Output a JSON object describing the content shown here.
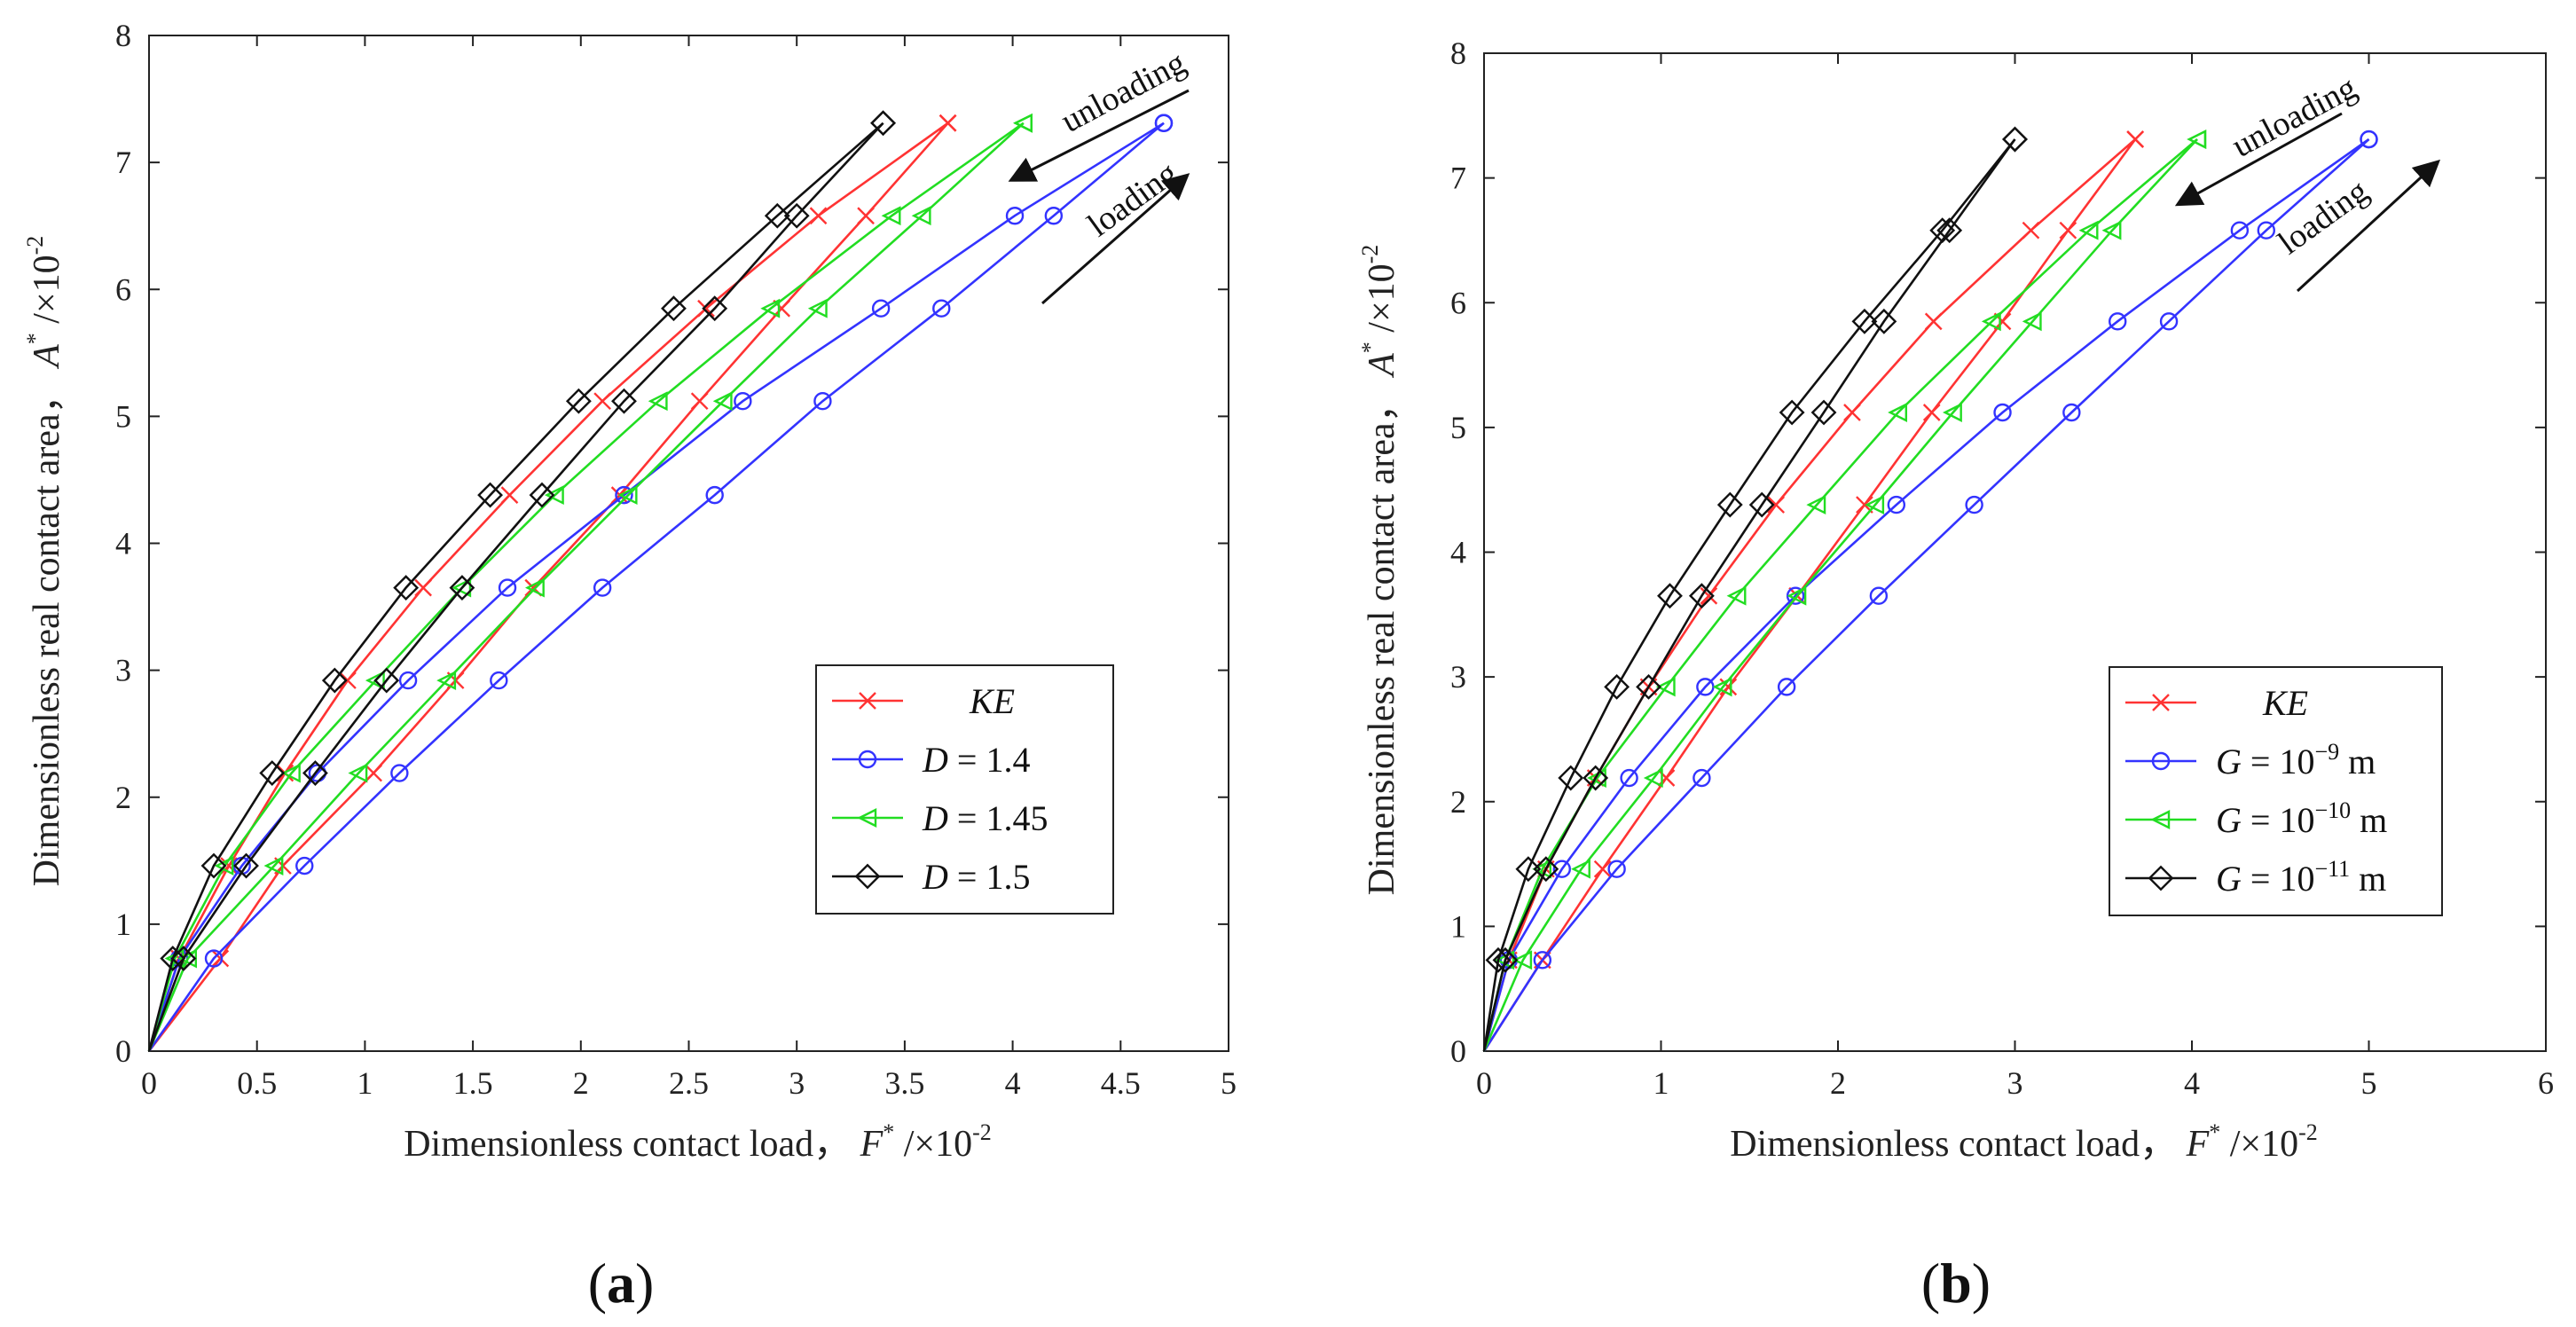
{
  "chart_data": [
    {
      "type": "line",
      "panel_label": "(a)",
      "caption_open": "(",
      "caption_letter": "a",
      "caption_close": ")",
      "xlabel": "Dimensionless contact load，",
      "xlabel_var": "F",
      "xlabel_sup": "*",
      "xlabel_tail": " /×10",
      "xlabel_exp": "-2",
      "ylabel": "Dimensionless real contact area，",
      "ylabel_var": "A",
      "ylabel_sup": "*",
      "ylabel_tail": " /×10",
      "ylabel_exp": "-2",
      "xlim": [
        0,
        5
      ],
      "ylim": [
        0,
        8
      ],
      "xticks": [
        0,
        0.5,
        1,
        1.5,
        2,
        2.5,
        3,
        3.5,
        4,
        4.5,
        5
      ],
      "xtick_labels": [
        "0",
        "0.5",
        "1",
        "1.5",
        "2",
        "2.5",
        "3",
        "3.5",
        "4",
        "4.5",
        "5"
      ],
      "yticks": [
        0,
        1,
        2,
        3,
        4,
        5,
        6,
        7,
        8
      ],
      "ytick_labels": [
        "0",
        "1",
        "2",
        "3",
        "4",
        "5",
        "6",
        "7",
        "8"
      ],
      "annotations": {
        "unloading": "unloading",
        "loading": "loading"
      },
      "series": [
        {
          "name": "KE",
          "label_main": "KE",
          "label_exp": "",
          "label_unit": "",
          "color": "#ff3333",
          "marker": "x",
          "loading": [
            [
              0,
              0
            ],
            [
              0.33,
              0.73
            ],
            [
              0.62,
              1.46
            ],
            [
              1.04,
              2.19
            ],
            [
              1.42,
              2.92
            ],
            [
              1.78,
              3.65
            ],
            [
              2.18,
              4.38
            ],
            [
              2.55,
              5.12
            ],
            [
              2.93,
              5.85
            ],
            [
              3.32,
              6.58
            ],
            [
              3.7,
              7.31
            ]
          ],
          "unloading": [
            [
              3.7,
              7.31
            ],
            [
              3.1,
              6.58
            ],
            [
              2.58,
              5.85
            ],
            [
              2.1,
              5.12
            ],
            [
              1.67,
              4.38
            ],
            [
              1.27,
              3.65
            ],
            [
              0.92,
              2.92
            ],
            [
              0.63,
              2.19
            ],
            [
              0.37,
              1.46
            ],
            [
              0.14,
              0.73
            ],
            [
              0,
              0
            ]
          ]
        },
        {
          "name": "D = 1.4",
          "label_main": "D = 1.4",
          "label_exp": "",
          "label_unit": "",
          "color": "#3333ff",
          "marker": "o",
          "loading": [
            [
              0,
              0
            ],
            [
              0.3,
              0.73
            ],
            [
              0.72,
              1.46
            ],
            [
              1.16,
              2.19
            ],
            [
              1.62,
              2.92
            ],
            [
              2.1,
              3.65
            ],
            [
              2.62,
              4.38
            ],
            [
              3.12,
              5.12
            ],
            [
              3.67,
              5.85
            ],
            [
              4.19,
              6.58
            ],
            [
              4.7,
              7.31
            ]
          ],
          "unloading": [
            [
              4.7,
              7.31
            ],
            [
              4.01,
              6.58
            ],
            [
              3.39,
              5.85
            ],
            [
              2.75,
              5.12
            ],
            [
              2.2,
              4.38
            ],
            [
              1.66,
              3.65
            ],
            [
              1.2,
              2.92
            ],
            [
              0.78,
              2.19
            ],
            [
              0.43,
              1.46
            ],
            [
              0.14,
              0.73
            ],
            [
              0,
              0
            ]
          ]
        },
        {
          "name": "D = 1.45",
          "label_main": "D = 1.45",
          "label_exp": "",
          "label_unit": "",
          "color": "#22dd22",
          "marker": "<",
          "loading": [
            [
              0,
              0
            ],
            [
              0.18,
              0.73
            ],
            [
              0.58,
              1.46
            ],
            [
              0.97,
              2.19
            ],
            [
              1.38,
              2.92
            ],
            [
              1.79,
              3.65
            ],
            [
              2.22,
              4.38
            ],
            [
              2.66,
              5.12
            ],
            [
              3.1,
              5.85
            ],
            [
              3.58,
              6.58
            ],
            [
              4.05,
              7.31
            ]
          ],
          "unloading": [
            [
              4.05,
              7.31
            ],
            [
              3.44,
              6.58
            ],
            [
              2.88,
              5.85
            ],
            [
              2.36,
              5.12
            ],
            [
              1.88,
              4.38
            ],
            [
              1.45,
              3.65
            ],
            [
              1.05,
              2.92
            ],
            [
              0.66,
              2.19
            ],
            [
              0.35,
              1.46
            ],
            [
              0.12,
              0.73
            ],
            [
              0,
              0
            ]
          ]
        },
        {
          "name": "D = 1.5",
          "label_main": "D = 1.5",
          "label_exp": "",
          "label_unit": "",
          "color": "#111111",
          "marker": "s",
          "loading": [
            [
              0,
              0
            ],
            [
              0.16,
              0.73
            ],
            [
              0.45,
              1.46
            ],
            [
              0.77,
              2.19
            ],
            [
              1.1,
              2.92
            ],
            [
              1.45,
              3.65
            ],
            [
              1.82,
              4.38
            ],
            [
              2.2,
              5.12
            ],
            [
              2.62,
              5.85
            ],
            [
              3.0,
              6.58
            ],
            [
              3.4,
              7.31
            ]
          ],
          "unloading": [
            [
              3.4,
              7.31
            ],
            [
              2.91,
              6.58
            ],
            [
              2.43,
              5.85
            ],
            [
              1.99,
              5.12
            ],
            [
              1.58,
              4.38
            ],
            [
              1.19,
              3.65
            ],
            [
              0.86,
              2.92
            ],
            [
              0.57,
              2.19
            ],
            [
              0.3,
              1.46
            ],
            [
              0.11,
              0.73
            ],
            [
              0,
              0
            ]
          ]
        }
      ]
    },
    {
      "type": "line",
      "panel_label": "(b)",
      "caption_open": "(",
      "caption_letter": "b",
      "caption_close": ")",
      "xlabel": "Dimensionless contact load，",
      "xlabel_var": "F",
      "xlabel_sup": "*",
      "xlabel_tail": " /×10",
      "xlabel_exp": "-2",
      "ylabel": "Dimensionless real contact area，",
      "ylabel_var": "A",
      "ylabel_sup": "*",
      "ylabel_tail": " /×10",
      "ylabel_exp": "-2",
      "xlim": [
        0,
        6
      ],
      "ylim": [
        0,
        8
      ],
      "xticks": [
        0,
        1,
        2,
        3,
        4,
        5,
        6
      ],
      "xtick_labels": [
        "0",
        "1",
        "2",
        "3",
        "4",
        "5",
        "6"
      ],
      "yticks": [
        0,
        1,
        2,
        3,
        4,
        5,
        6,
        7,
        8
      ],
      "ytick_labels": [
        "0",
        "1",
        "2",
        "3",
        "4",
        "5",
        "6",
        "7",
        "8"
      ],
      "annotations": {
        "unloading": "unloading",
        "loading": "loading"
      },
      "series": [
        {
          "name": "KE",
          "label_main": "KE",
          "label_exp": "",
          "label_unit": "",
          "color": "#ff3333",
          "marker": "x",
          "loading": [
            [
              0,
              0
            ],
            [
              0.33,
              0.73
            ],
            [
              0.67,
              1.46
            ],
            [
              1.03,
              2.19
            ],
            [
              1.38,
              2.92
            ],
            [
              1.77,
              3.65
            ],
            [
              2.15,
              4.38
            ],
            [
              2.53,
              5.12
            ],
            [
              2.93,
              5.85
            ],
            [
              3.3,
              6.58
            ],
            [
              3.68,
              7.31
            ]
          ],
          "unloading": [
            [
              3.68,
              7.31
            ],
            [
              3.09,
              6.58
            ],
            [
              2.54,
              5.85
            ],
            [
              2.08,
              5.12
            ],
            [
              1.65,
              4.38
            ],
            [
              1.27,
              3.65
            ],
            [
              0.93,
              2.92
            ],
            [
              0.63,
              2.19
            ],
            [
              0.35,
              1.46
            ],
            [
              0.14,
              0.73
            ],
            [
              0,
              0
            ]
          ]
        },
        {
          "name": "G = 10^-9 m",
          "label_main": "G = 10",
          "label_exp": "−9",
          "label_unit": " m",
          "color": "#3333ff",
          "marker": "o",
          "loading": [
            [
              0,
              0
            ],
            [
              0.33,
              0.73
            ],
            [
              0.75,
              1.46
            ],
            [
              1.23,
              2.19
            ],
            [
              1.71,
              2.92
            ],
            [
              2.23,
              3.65
            ],
            [
              2.77,
              4.38
            ],
            [
              3.32,
              5.12
            ],
            [
              3.87,
              5.85
            ],
            [
              4.42,
              6.58
            ],
            [
              5.0,
              7.31
            ]
          ],
          "unloading": [
            [
              5.0,
              7.31
            ],
            [
              4.27,
              6.58
            ],
            [
              3.58,
              5.85
            ],
            [
              2.93,
              5.12
            ],
            [
              2.33,
              4.38
            ],
            [
              1.76,
              3.65
            ],
            [
              1.25,
              2.92
            ],
            [
              0.82,
              2.19
            ],
            [
              0.44,
              1.46
            ],
            [
              0.14,
              0.73
            ],
            [
              0,
              0
            ]
          ]
        },
        {
          "name": "G = 10^-10 m",
          "label_main": "G = 10",
          "label_exp": "−10",
          "label_unit": " m",
          "color": "#22dd22",
          "marker": "<",
          "loading": [
            [
              0,
              0
            ],
            [
              0.22,
              0.73
            ],
            [
              0.55,
              1.46
            ],
            [
              0.96,
              2.19
            ],
            [
              1.35,
              2.92
            ],
            [
              1.77,
              3.65
            ],
            [
              2.21,
              4.38
            ],
            [
              2.65,
              5.12
            ],
            [
              3.1,
              5.85
            ],
            [
              3.55,
              6.58
            ],
            [
              4.03,
              7.31
            ]
          ],
          "unloading": [
            [
              4.03,
              7.31
            ],
            [
              3.42,
              6.58
            ],
            [
              2.87,
              5.85
            ],
            [
              2.34,
              5.12
            ],
            [
              1.88,
              4.38
            ],
            [
              1.43,
              3.65
            ],
            [
              1.03,
              2.92
            ],
            [
              0.64,
              2.19
            ],
            [
              0.33,
              1.46
            ],
            [
              0.12,
              0.73
            ],
            [
              0,
              0
            ]
          ]
        },
        {
          "name": "G = 10^-11 m",
          "label_main": "G = 10",
          "label_exp": "−11",
          "label_unit": " m",
          "color": "#111111",
          "marker": "s",
          "loading": [
            [
              0,
              0
            ],
            [
              0.12,
              0.73
            ],
            [
              0.35,
              1.46
            ],
            [
              0.63,
              2.19
            ],
            [
              0.93,
              2.92
            ],
            [
              1.23,
              3.65
            ],
            [
              1.57,
              4.38
            ],
            [
              1.92,
              5.12
            ],
            [
              2.26,
              5.85
            ],
            [
              2.63,
              6.58
            ],
            [
              3.0,
              7.31
            ]
          ],
          "unloading": [
            [
              3.0,
              7.31
            ],
            [
              2.59,
              6.58
            ],
            [
              2.15,
              5.85
            ],
            [
              1.74,
              5.12
            ],
            [
              1.39,
              4.38
            ],
            [
              1.05,
              3.65
            ],
            [
              0.75,
              2.92
            ],
            [
              0.49,
              2.19
            ],
            [
              0.25,
              1.46
            ],
            [
              0.08,
              0.73
            ],
            [
              0,
              0
            ]
          ]
        }
      ]
    }
  ]
}
